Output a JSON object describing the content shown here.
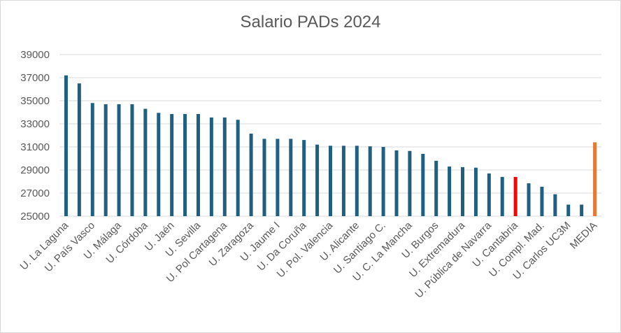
{
  "chart_data": {
    "type": "bar",
    "title": "Salario PADs 2024",
    "xlabel": "",
    "ylabel": "",
    "ylim": [
      25000,
      39000
    ],
    "yticks": [
      25000,
      27000,
      29000,
      31000,
      33000,
      35000,
      37000,
      39000
    ],
    "grid": true,
    "legend": "none",
    "colors": {
      "default": "#1f5f7f",
      "highlight": "#ff0000",
      "average": "#e8783a",
      "grid": "#d9d9d9",
      "text": "#595959"
    },
    "categories": [
      "U. La Laguna",
      "",
      "U. País Vasco",
      "",
      "U. Málaga",
      "",
      "U. Córdoba",
      "",
      "U. Jaén",
      "",
      "U. Sevilla",
      "",
      "U. Pol Cartagena",
      "",
      "U. Zaragoza",
      "",
      "U. Jaume I",
      "",
      "U. Da Coruña",
      "",
      "U. Pol. Valencia",
      "",
      "U. Alicante",
      "",
      "U. Santiago C.",
      "",
      "U. C. La Mancha",
      "",
      "U. Burgos",
      "",
      "U. Extremadura",
      "",
      "U. Pública de Navarra",
      "",
      "U. Cantabria",
      "",
      "U. Compl. Mad.",
      "",
      "U. Carlos UC3M",
      "",
      "MEDIA"
    ],
    "values": [
      37200,
      36500,
      34800,
      34700,
      34700,
      34700,
      34300,
      33950,
      33850,
      33850,
      33850,
      33550,
      33550,
      33350,
      32150,
      31700,
      31700,
      31700,
      31600,
      31200,
      31100,
      31100,
      31100,
      31050,
      31000,
      30700,
      30650,
      30400,
      29800,
      29300,
      29250,
      29200,
      28700,
      28400,
      28400,
      27850,
      27550,
      26900,
      26000,
      26000,
      31400
    ],
    "bar_colors": [
      "default",
      "default",
      "default",
      "default",
      "default",
      "default",
      "default",
      "default",
      "default",
      "default",
      "default",
      "default",
      "default",
      "default",
      "default",
      "default",
      "default",
      "default",
      "default",
      "default",
      "default",
      "default",
      "default",
      "default",
      "default",
      "default",
      "default",
      "default",
      "default",
      "default",
      "default",
      "default",
      "default",
      "default",
      "highlight",
      "default",
      "default",
      "default",
      "default",
      "default",
      "average"
    ]
  }
}
